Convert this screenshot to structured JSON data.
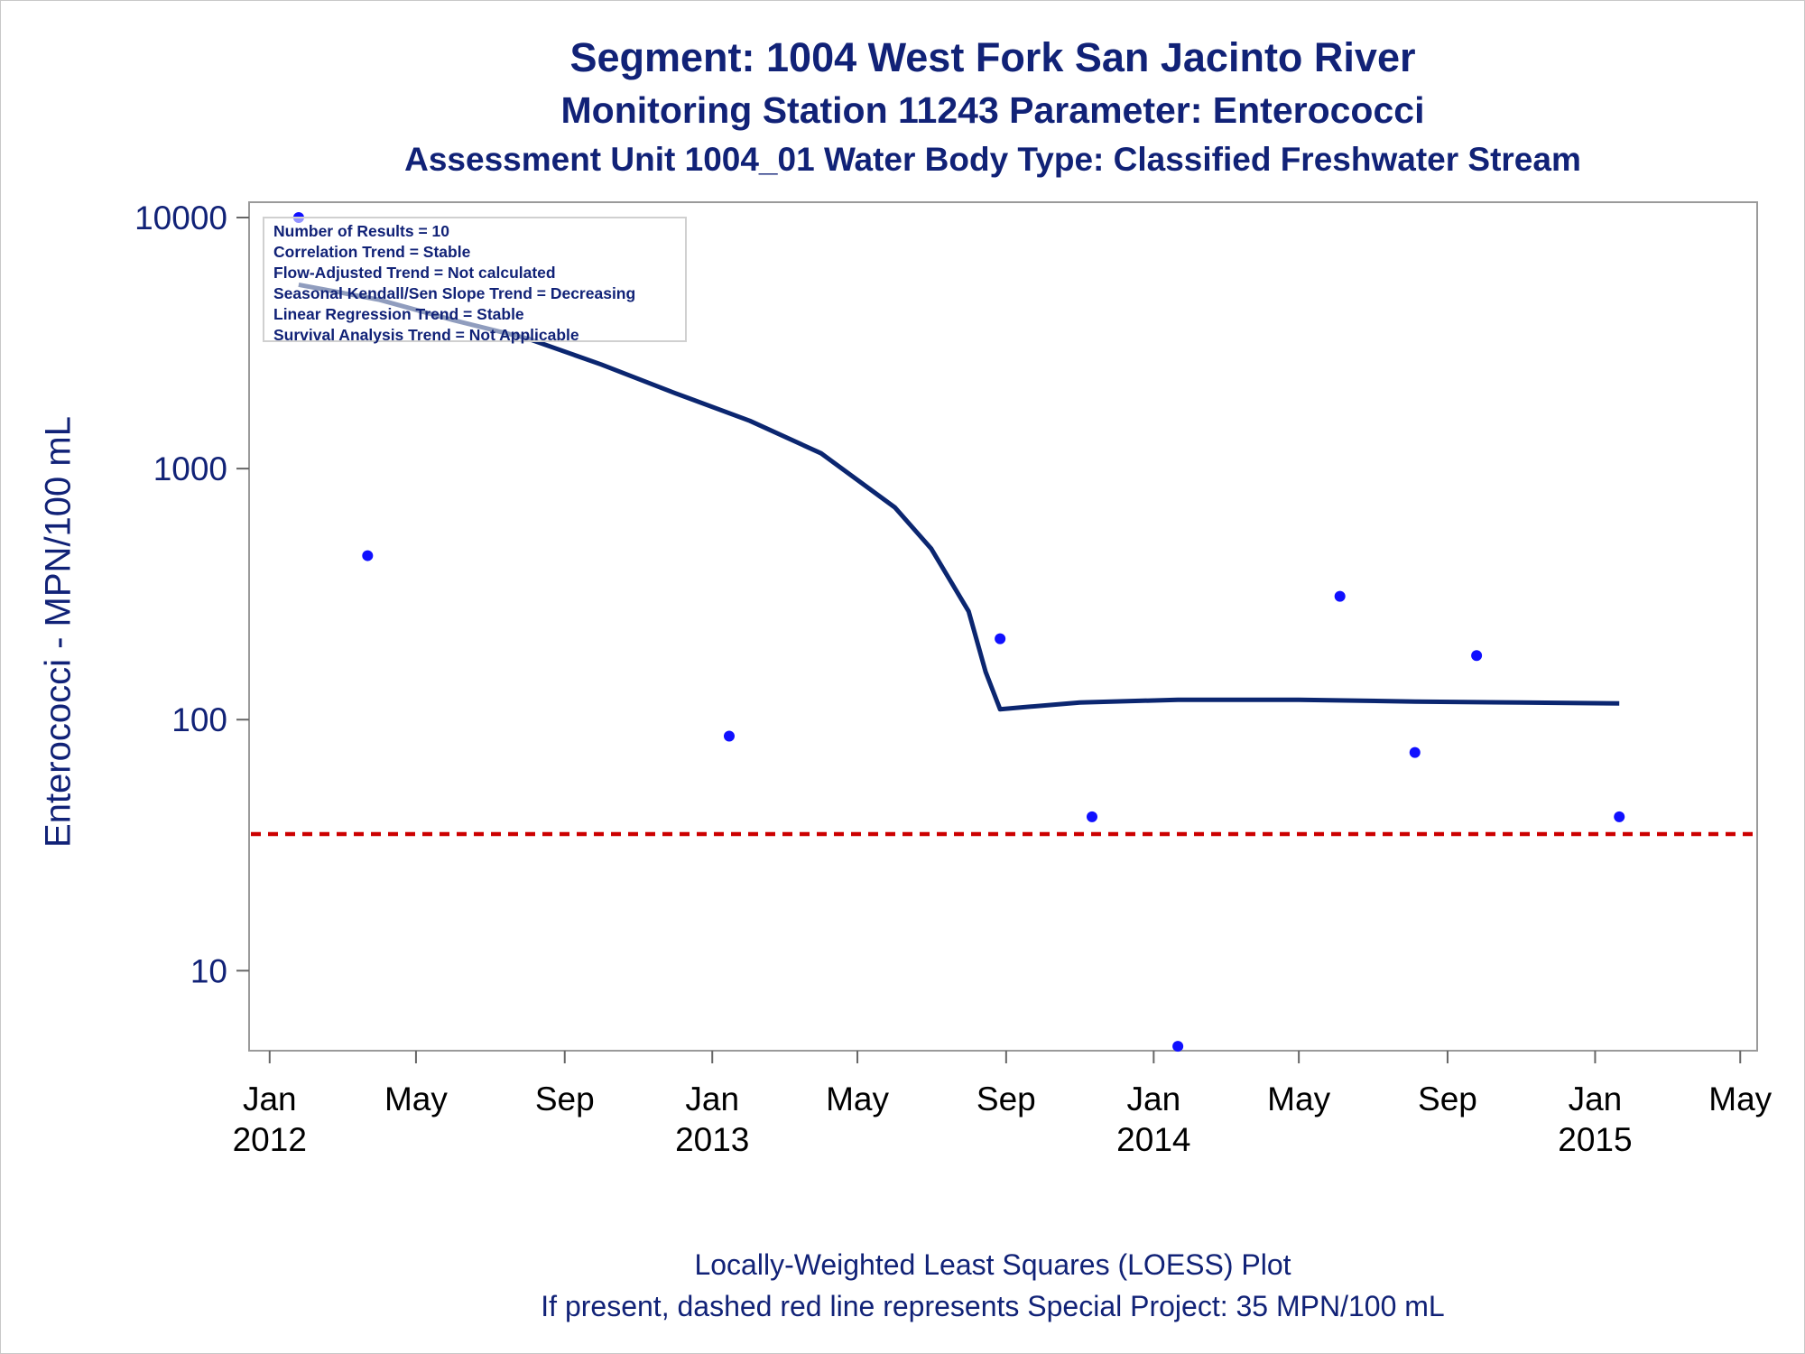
{
  "chart_data": {
    "type": "scatter",
    "title": "Segment: 1004  West Fork San Jacinto River",
    "subtitle": "Monitoring Station 11243 Parameter: Enterococci",
    "subtitle2": "Assessment Unit 1004_01   Water Body Type: Classified Freshwater Stream",
    "xlabel": "",
    "ylabel": "Enterococci - MPN/100 mL",
    "y_scale": "log",
    "ylim": [
      4.8,
      10000
    ],
    "xlim": [
      "2011-12-15",
      "2015-05-15"
    ],
    "y_ticks": [
      10,
      100,
      1000,
      10000
    ],
    "y_tick_labels": [
      "10",
      "100",
      "1000",
      "10000"
    ],
    "x_ticks": [
      {
        "date": "2012-01-01",
        "label": "Jan",
        "year": "2012"
      },
      {
        "date": "2012-05-01",
        "label": "May",
        "year": ""
      },
      {
        "date": "2012-09-01",
        "label": "Sep",
        "year": ""
      },
      {
        "date": "2013-01-01",
        "label": "Jan",
        "year": "2013"
      },
      {
        "date": "2013-05-01",
        "label": "May",
        "year": ""
      },
      {
        "date": "2013-09-01",
        "label": "Sep",
        "year": ""
      },
      {
        "date": "2014-01-01",
        "label": "Jan",
        "year": "2014"
      },
      {
        "date": "2014-05-01",
        "label": "May",
        "year": ""
      },
      {
        "date": "2014-09-01",
        "label": "Sep",
        "year": ""
      },
      {
        "date": "2015-01-01",
        "label": "Jan",
        "year": "2015"
      },
      {
        "date": "2015-05-01",
        "label": "May",
        "year": ""
      }
    ],
    "grid": false,
    "series": [
      {
        "type": "scatter",
        "color": "#1010ff",
        "points": [
          {
            "x": "2012-01-25",
            "y": 10000
          },
          {
            "x": "2012-03-22",
            "y": 450
          },
          {
            "x": "2013-01-15",
            "y": 86
          },
          {
            "x": "2013-08-27",
            "y": 210
          },
          {
            "x": "2013-11-11",
            "y": 41
          },
          {
            "x": "2014-01-21",
            "y": 5
          },
          {
            "x": "2014-06-04",
            "y": 310
          },
          {
            "x": "2014-08-05",
            "y": 74
          },
          {
            "x": "2014-09-25",
            "y": 180
          },
          {
            "x": "2015-01-21",
            "y": 41
          }
        ]
      },
      {
        "type": "line",
        "color": "#0b2670",
        "points": [
          {
            "x": "2012-01-25",
            "y": 5400
          },
          {
            "x": "2012-04-01",
            "y": 4700
          },
          {
            "x": "2012-06-01",
            "y": 3900
          },
          {
            "x": "2012-08-01",
            "y": 3300
          },
          {
            "x": "2012-10-01",
            "y": 2600
          },
          {
            "x": "2012-12-01",
            "y": 2000
          },
          {
            "x": "2013-02-01",
            "y": 1550
          },
          {
            "x": "2013-04-01",
            "y": 1150
          },
          {
            "x": "2013-06-01",
            "y": 700
          },
          {
            "x": "2013-07-01",
            "y": 480
          },
          {
            "x": "2013-08-01",
            "y": 270
          },
          {
            "x": "2013-08-15",
            "y": 155
          },
          {
            "x": "2013-08-27",
            "y": 110
          },
          {
            "x": "2013-09-15",
            "y": 112
          },
          {
            "x": "2013-11-01",
            "y": 117
          },
          {
            "x": "2014-01-21",
            "y": 120
          },
          {
            "x": "2014-05-01",
            "y": 120
          },
          {
            "x": "2014-08-05",
            "y": 118
          },
          {
            "x": "2014-11-01",
            "y": 117
          },
          {
            "x": "2015-01-21",
            "y": 116
          }
        ]
      }
    ],
    "reference_line": {
      "y": 35,
      "color": "#cc0000",
      "style": "dashed"
    },
    "annotations": [
      "Number of Results = 10",
      "Correlation Trend = Stable",
      "Flow-Adjusted Trend = Not calculated",
      "Seasonal Kendall/Sen Slope Trend = Decreasing",
      "Linear Regression Trend = Stable",
      "Survival Analysis Trend = Not Applicable"
    ],
    "footnote1": "Locally-Weighted Least Squares (LOESS) Plot",
    "footnote2": "If present, dashed red line represents Special Project: 35 MPN/100 mL"
  }
}
